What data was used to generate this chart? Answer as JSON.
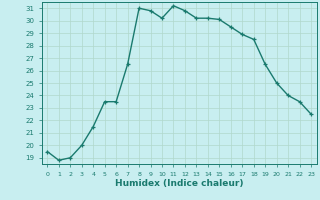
{
  "x": [
    0,
    1,
    2,
    3,
    4,
    5,
    6,
    7,
    8,
    9,
    10,
    11,
    12,
    13,
    14,
    15,
    16,
    17,
    18,
    19,
    20,
    21,
    22,
    23
  ],
  "y": [
    19.5,
    18.8,
    19.0,
    20.0,
    21.5,
    23.5,
    23.5,
    26.5,
    31.0,
    30.8,
    30.2,
    31.2,
    30.8,
    30.2,
    30.2,
    30.1,
    29.5,
    28.9,
    28.5,
    26.5,
    25.0,
    24.0,
    23.5,
    22.5
  ],
  "xlabel": "Humidex (Indice chaleur)",
  "ylim": [
    18.5,
    31.5
  ],
  "xlim": [
    -0.5,
    23.5
  ],
  "yticks": [
    19,
    20,
    21,
    22,
    23,
    24,
    25,
    26,
    27,
    28,
    29,
    30,
    31
  ],
  "xticks": [
    0,
    1,
    2,
    3,
    4,
    5,
    6,
    7,
    8,
    9,
    10,
    11,
    12,
    13,
    14,
    15,
    16,
    17,
    18,
    19,
    20,
    21,
    22,
    23
  ],
  "line_color": "#1a7a6e",
  "bg_color": "#c8eef0",
  "grid_color": "#b0d8cc",
  "marker": "+",
  "marker_size": 3.5,
  "line_width": 1.0
}
